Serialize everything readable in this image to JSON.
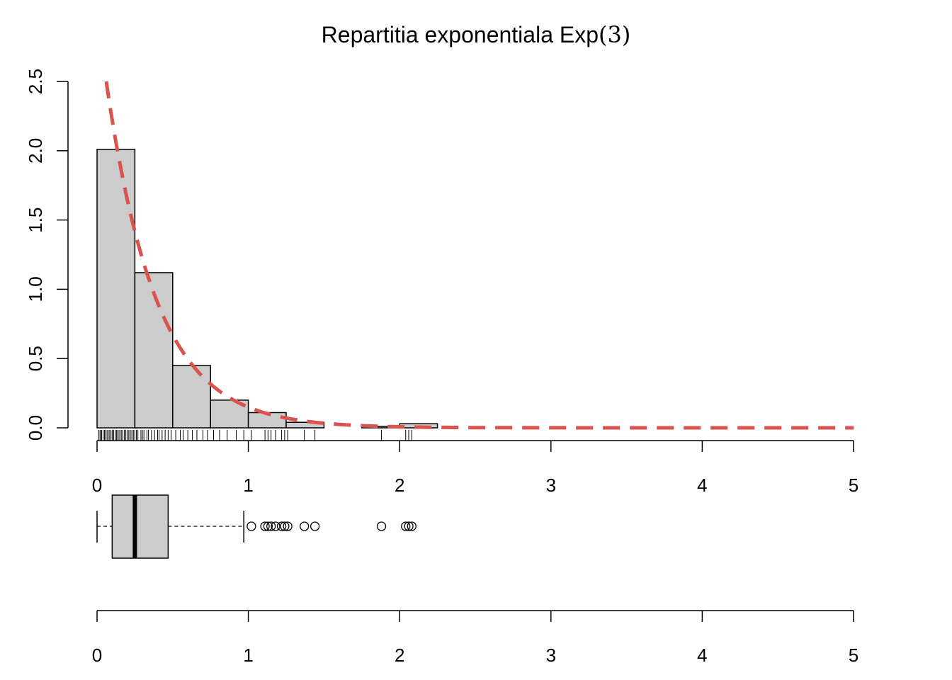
{
  "chart_data": [
    {
      "type": "bar",
      "subtype": "histogram-density",
      "title_text": "Repartitia exponentiala Exp",
      "title_arg": "(3)",
      "xlabel": "",
      "ylabel": "",
      "xlim": [
        0,
        5
      ],
      "ylim": [
        0,
        2.5
      ],
      "y_ticks": [
        "0.0",
        "0.5",
        "1.0",
        "1.5",
        "2.0",
        "2.5"
      ],
      "x_ticks": [
        "0",
        "1",
        "2",
        "3",
        "4",
        "5"
      ],
      "bin_edges": [
        0,
        0.25,
        0.5,
        0.75,
        1.0,
        1.25,
        1.5,
        1.75,
        2.0,
        2.25
      ],
      "densities": [
        2.01,
        1.12,
        0.45,
        0.2,
        0.11,
        0.04,
        0.0,
        0.01,
        0.03
      ],
      "bar_fill": "#cccccc",
      "density_curve": {
        "function": "3*exp(-3x)",
        "rate": 3,
        "style": "dashed",
        "color": "#d9534f"
      },
      "rug": [
        0.01,
        0.02,
        0.02,
        0.03,
        0.03,
        0.04,
        0.05,
        0.05,
        0.06,
        0.07,
        0.07,
        0.08,
        0.09,
        0.1,
        0.1,
        0.11,
        0.12,
        0.13,
        0.13,
        0.14,
        0.15,
        0.16,
        0.17,
        0.18,
        0.19,
        0.2,
        0.21,
        0.22,
        0.23,
        0.24,
        0.25,
        0.26,
        0.27,
        0.29,
        0.3,
        0.31,
        0.33,
        0.34,
        0.36,
        0.38,
        0.4,
        0.41,
        0.43,
        0.45,
        0.47,
        0.49,
        0.52,
        0.55,
        0.57,
        0.6,
        0.63,
        0.66,
        0.7,
        0.73,
        0.77,
        0.81,
        0.86,
        0.92,
        0.97,
        1.02,
        1.11,
        1.13,
        1.15,
        1.18,
        1.22,
        1.24,
        1.26,
        1.37,
        1.44,
        1.88,
        2.04,
        2.06,
        2.08
      ]
    },
    {
      "type": "box",
      "orientation": "horizontal",
      "xlim": [
        0,
        5
      ],
      "x_ticks": [
        "0",
        "1",
        "2",
        "3",
        "4",
        "5"
      ],
      "whisker_low": 0.0,
      "q1": 0.1,
      "median": 0.25,
      "q3": 0.47,
      "whisker_high": 0.97,
      "outliers": [
        1.02,
        1.11,
        1.13,
        1.15,
        1.18,
        1.22,
        1.24,
        1.26,
        1.37,
        1.44,
        1.88,
        2.04,
        2.06,
        2.08
      ],
      "box_fill": "#cccccc"
    }
  ]
}
